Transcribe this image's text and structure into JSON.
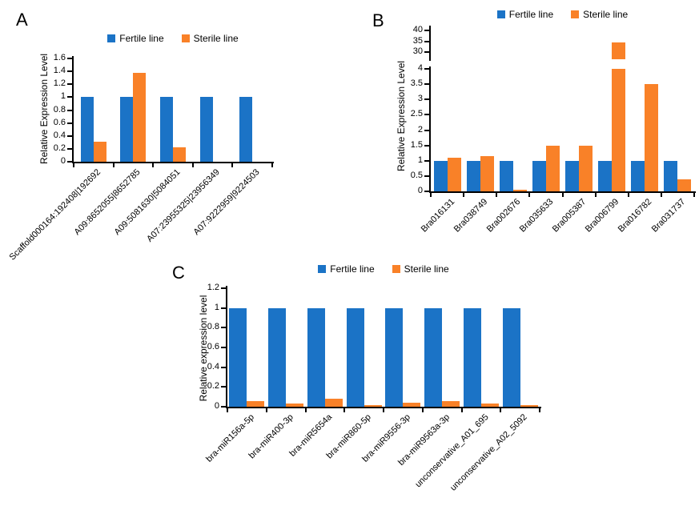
{
  "figure": {
    "panels": [
      {
        "label": "A"
      },
      {
        "label": "B"
      },
      {
        "label": "C"
      }
    ]
  },
  "legend": {
    "fertile_label": "Fertile line",
    "sterile_label": "Sterile line"
  },
  "colors": {
    "fertile": "#1b73c6",
    "sterile": "#f98128",
    "axis": "#000000"
  },
  "chart_data": [
    {
      "panel": "A",
      "type": "bar",
      "ylabel": "Relative Expression Level",
      "legend_position": "top",
      "categories": [
        "Scaffold000164:192408|192692",
        "A09:8652055|8652785",
        "A09:5081630|5084051",
        "A07:23955325|23956349",
        "A07:9222959|9224503"
      ],
      "series": [
        {
          "name": "Fertile line",
          "values": [
            1,
            1,
            1,
            1,
            1
          ]
        },
        {
          "name": "Sterile line",
          "values": [
            0.31,
            1.38,
            0.22,
            0,
            0
          ]
        }
      ],
      "ylim": [
        0,
        1.6
      ],
      "yticks": [
        0,
        0.2,
        0.4,
        0.6,
        0.8,
        1,
        1.2,
        1.4,
        1.6
      ]
    },
    {
      "panel": "B",
      "type": "bar",
      "ylabel": "Relative Expression Level",
      "legend_position": "top",
      "categories": [
        "Bra016131",
        "Bra038749",
        "Bra002676",
        "Bra035633",
        "Bra005387",
        "Bra006799",
        "Bra016782",
        "Bra031737"
      ],
      "series": [
        {
          "name": "Fertile line",
          "values": [
            1,
            1,
            1,
            1,
            1,
            1,
            1,
            1
          ]
        },
        {
          "name": "Sterile line",
          "values": [
            1.1,
            1.15,
            0.06,
            1.5,
            1.5,
            34.5,
            3.5,
            0.4
          ]
        }
      ],
      "axis_break": {
        "lower_ylim": [
          0,
          4
        ],
        "lower_yticks": [
          0,
          0.5,
          1,
          1.5,
          2,
          2.5,
          3,
          3.5,
          4
        ],
        "upper_ylim": [
          30,
          40
        ],
        "upper_yticks": [
          30,
          35,
          40
        ]
      }
    },
    {
      "panel": "C",
      "type": "bar",
      "ylabel": "Relative expression level",
      "legend_position": "top",
      "categories": [
        "bra-miR156a-5p",
        "bra-miR400-3p",
        "bra-miR5654a",
        "bra-miR860-5p",
        "bra-miR9556-3p",
        "bra-miR9563a-3p",
        "unconservative_A01_695",
        "unconservative_A02_5092"
      ],
      "series": [
        {
          "name": "Fertile line",
          "values": [
            1,
            1,
            1,
            1,
            1,
            1,
            1,
            1
          ]
        },
        {
          "name": "Sterile line",
          "values": [
            0.06,
            0.03,
            0.08,
            0.02,
            0.04,
            0.06,
            0.03,
            0.02
          ]
        }
      ],
      "ylim": [
        0,
        1.2
      ],
      "yticks": [
        0,
        0.2,
        0.4,
        0.6,
        0.8,
        1,
        1.2
      ]
    }
  ]
}
